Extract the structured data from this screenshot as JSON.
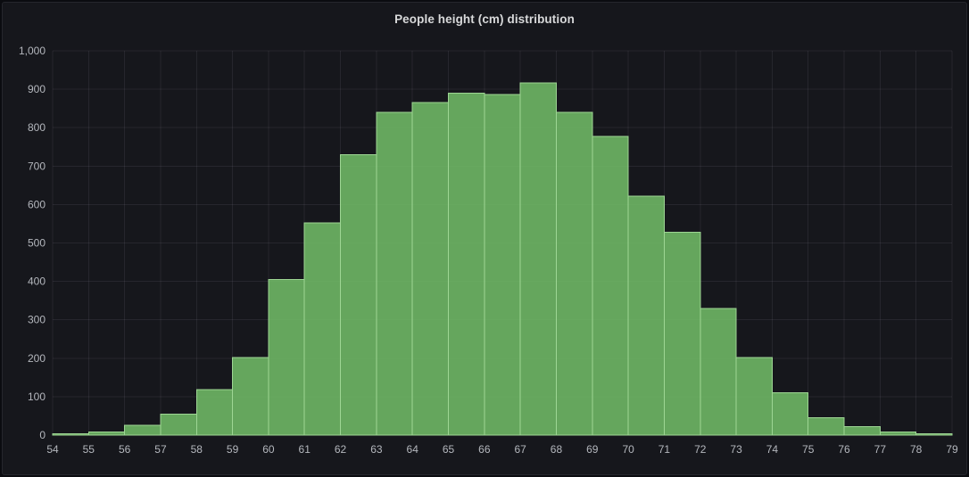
{
  "panel": {
    "title": "People height (cm) distribution"
  },
  "chart_data": {
    "type": "bar",
    "subtype": "histogram",
    "title": "People height (cm) distribution",
    "xlabel": "",
    "ylabel": "",
    "xlim": [
      54,
      79
    ],
    "ylim": [
      0,
      1000
    ],
    "bin_width": 1,
    "bin_starts": [
      54,
      55,
      56,
      57,
      58,
      59,
      60,
      61,
      62,
      63,
      64,
      65,
      66,
      67,
      68,
      69,
      70,
      71,
      72,
      73,
      74,
      75,
      76,
      77,
      78
    ],
    "values": [
      3,
      8,
      25,
      55,
      118,
      202,
      405,
      552,
      730,
      840,
      866,
      890,
      886,
      916,
      840,
      777,
      622,
      528,
      329,
      202,
      110,
      45,
      22,
      8,
      4
    ],
    "x_ticks": [
      54,
      55,
      56,
      57,
      58,
      59,
      60,
      61,
      62,
      63,
      64,
      65,
      66,
      67,
      68,
      69,
      70,
      71,
      72,
      73,
      74,
      75,
      76,
      77,
      78,
      79
    ],
    "y_ticks": [
      0,
      100,
      200,
      300,
      400,
      500,
      600,
      700,
      800,
      900,
      1000
    ],
    "y_tick_labels": [
      "0",
      "100",
      "200",
      "300",
      "400",
      "500",
      "600",
      "700",
      "800",
      "900",
      "1,000"
    ],
    "grid": true,
    "legend": "none",
    "colors": {
      "bar_fill": "#73BF69",
      "bar_fill_opacity": 0.85,
      "bar_stroke": "#9ED694",
      "grid_line": "rgba(204,204,220,0.09)",
      "tick_text": "#b4b7bd",
      "panel_background": "#16171c",
      "page_background": "#0b0c10",
      "title_text": "#d8d9da"
    }
  }
}
